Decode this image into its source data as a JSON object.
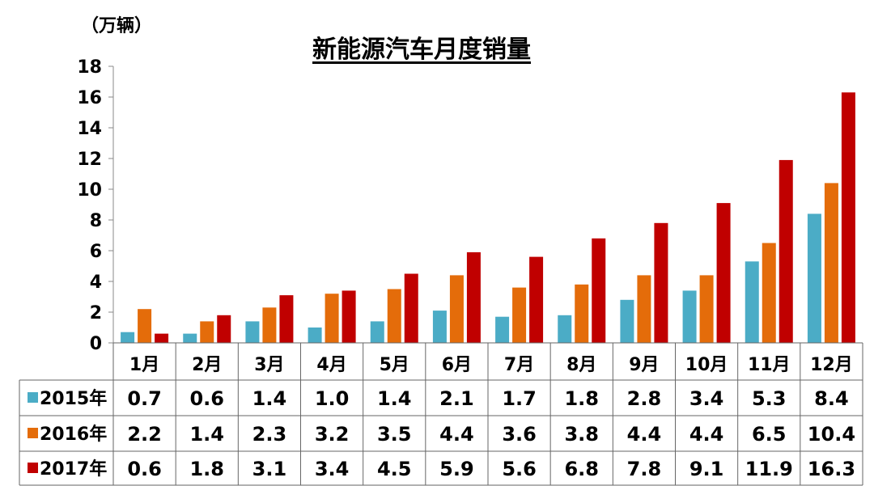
{
  "chart_data": {
    "type": "bar",
    "title": "新能源汽车月度销量",
    "ylabel": "（万辆）",
    "xlabel": "",
    "ylim": [
      0,
      18
    ],
    "yticks": [
      0,
      2,
      4,
      6,
      8,
      10,
      12,
      14,
      16,
      18
    ],
    "grid": false,
    "legend": "table-left",
    "categories": [
      "1月",
      "2月",
      "3月",
      "4月",
      "5月",
      "6月",
      "7月",
      "8月",
      "9月",
      "10月",
      "11月",
      "12月"
    ],
    "series": [
      {
        "name": "2015年",
        "color": "#4bacc6",
        "values": [
          0.7,
          0.6,
          1.4,
          1.0,
          1.4,
          2.1,
          1.7,
          1.8,
          2.8,
          3.4,
          5.3,
          8.4
        ]
      },
      {
        "name": "2016年",
        "color": "#e46c0a",
        "values": [
          2.2,
          1.4,
          2.3,
          3.2,
          3.5,
          4.4,
          3.6,
          3.8,
          4.4,
          4.4,
          6.5,
          10.4
        ]
      },
      {
        "name": "2017年",
        "color": "#c00000",
        "values": [
          0.6,
          1.8,
          3.1,
          3.4,
          4.5,
          5.9,
          5.6,
          6.8,
          7.8,
          9.1,
          11.9,
          16.3
        ]
      }
    ]
  }
}
